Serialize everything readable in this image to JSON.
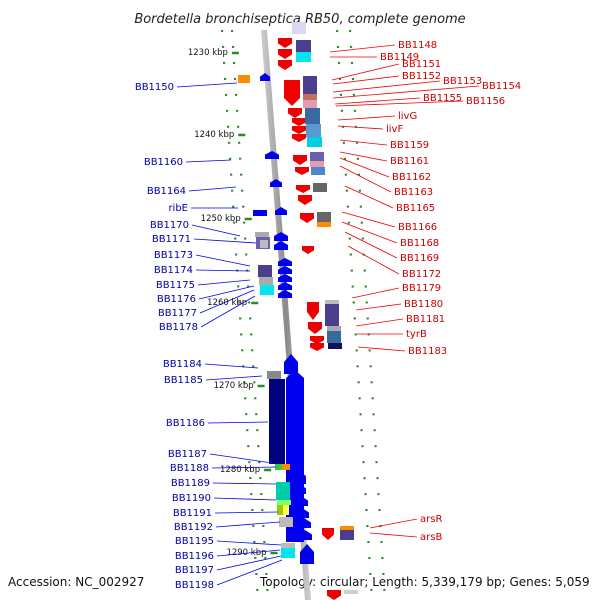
{
  "header": {
    "title": "Bordetella bronchiseptica RB50, complete genome"
  },
  "footer": {
    "accession": "Accession: NC_002927",
    "summary": "Topology: circular; Length: 5,339,179 bp; Genes: 5,059"
  },
  "scale_ticks": [
    "1230 kbp",
    "1240 kbp",
    "1250 kbp",
    "1260 kbp",
    "1270 kbp",
    "1280 kbp",
    "1290 kbp"
  ],
  "left_genes": [
    "BB1150",
    "BB1160",
    "BB1164",
    "ribE",
    "BB1170",
    "BB1171",
    "BB1173",
    "BB1174",
    "BB1175",
    "BB1176",
    "BB1177",
    "BB1178",
    "BB1184",
    "BB1185",
    "BB1186",
    "BB1187",
    "BB1188",
    "BB1189",
    "BB1190",
    "BB1191",
    "BB1192",
    "BB1195",
    "BB1196",
    "BB1197",
    "BB1198"
  ],
  "right_genes": [
    "BB1148",
    "BB1149",
    "BB1151",
    "BB1152",
    "BB1153",
    "BB1154",
    "BB1155",
    "BB1156",
    "livG",
    "livF",
    "BB1159",
    "BB1161",
    "BB1162",
    "BB1163",
    "BB1165",
    "BB1166",
    "BB1168",
    "BB1169",
    "BB1172",
    "BB1179",
    "BB1180",
    "BB1181",
    "tyrB",
    "BB1183",
    "arsR",
    "arsB"
  ],
  "colors": {
    "forward": "#0000ee",
    "reverse": "#ee0000",
    "forward_label": "#0000a0",
    "reverse_label": "#cc0000",
    "backbone": "#999999",
    "tick": "#2a8a2a"
  }
}
